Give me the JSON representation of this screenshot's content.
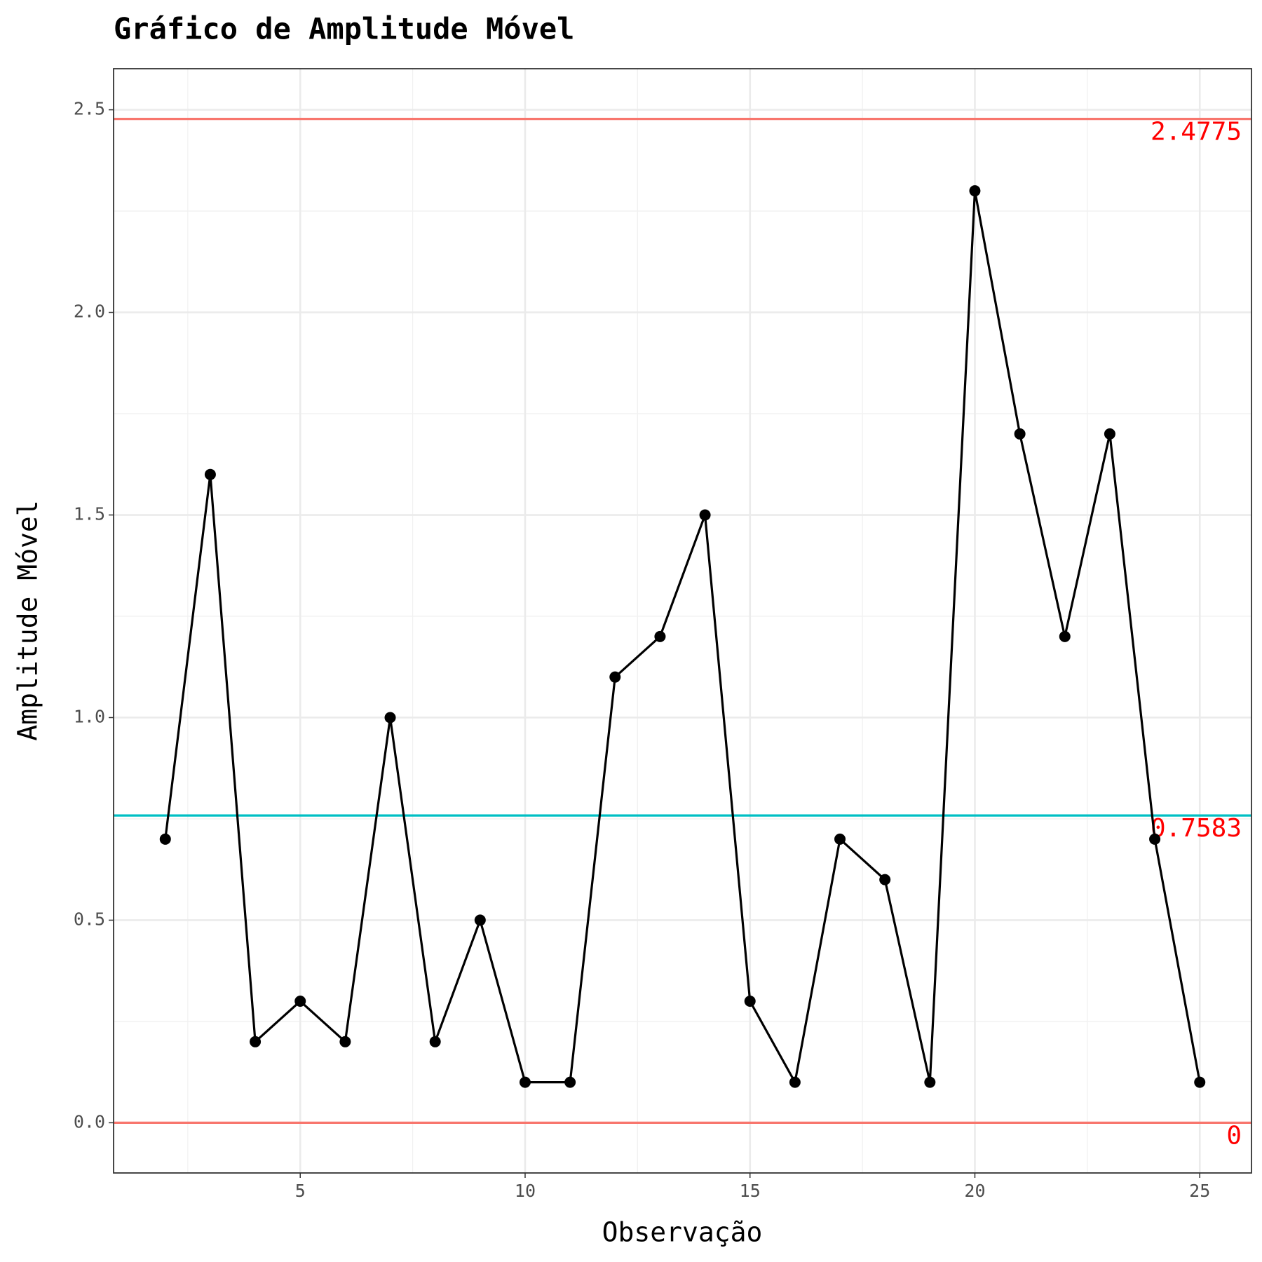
{
  "chart_data": {
    "type": "line",
    "title": "Gráfico de Amplitude Móvel",
    "x_label": "Observação",
    "y_label": "Amplitude Móvel",
    "x": [
      2,
      3,
      4,
      5,
      6,
      7,
      8,
      9,
      10,
      11,
      12,
      13,
      14,
      15,
      16,
      17,
      18,
      19,
      20,
      21,
      22,
      23,
      24,
      25
    ],
    "series": [
      {
        "name": "Amplitude Móvel",
        "color": "#000000",
        "values": [
          0.7,
          1.6,
          0.2,
          0.3,
          0.2,
          1.0,
          0.2,
          0.5,
          0.1,
          0.1,
          1.1,
          1.2,
          1.5,
          0.3,
          0.1,
          0.7,
          0.6,
          0.1,
          2.3,
          1.7,
          1.2,
          1.7,
          0.7,
          0.1
        ]
      }
    ],
    "reference_lines": [
      {
        "value": 2.4775,
        "color": "#f8766d"
      },
      {
        "value": 0.7583,
        "color": "#00bfc4"
      },
      {
        "value": 0,
        "color": "#f8766d"
      }
    ],
    "reference_label_color": "#ff0000",
    "xlim": [
      0.85,
      26.15
    ],
    "xticks": [
      5,
      10,
      15,
      20,
      25
    ],
    "ylim": [
      -0.1239,
      2.6014
    ],
    "yticks": [
      {
        "value": 0,
        "label": "0.0"
      },
      {
        "value": 0.5,
        "label": "0.5"
      },
      {
        "value": 1,
        "label": "1.0"
      },
      {
        "value": 1.5,
        "label": "1.5"
      },
      {
        "value": 2,
        "label": "2.0"
      },
      {
        "value": 2.5,
        "label": "2.5"
      }
    ],
    "grid": true
  }
}
